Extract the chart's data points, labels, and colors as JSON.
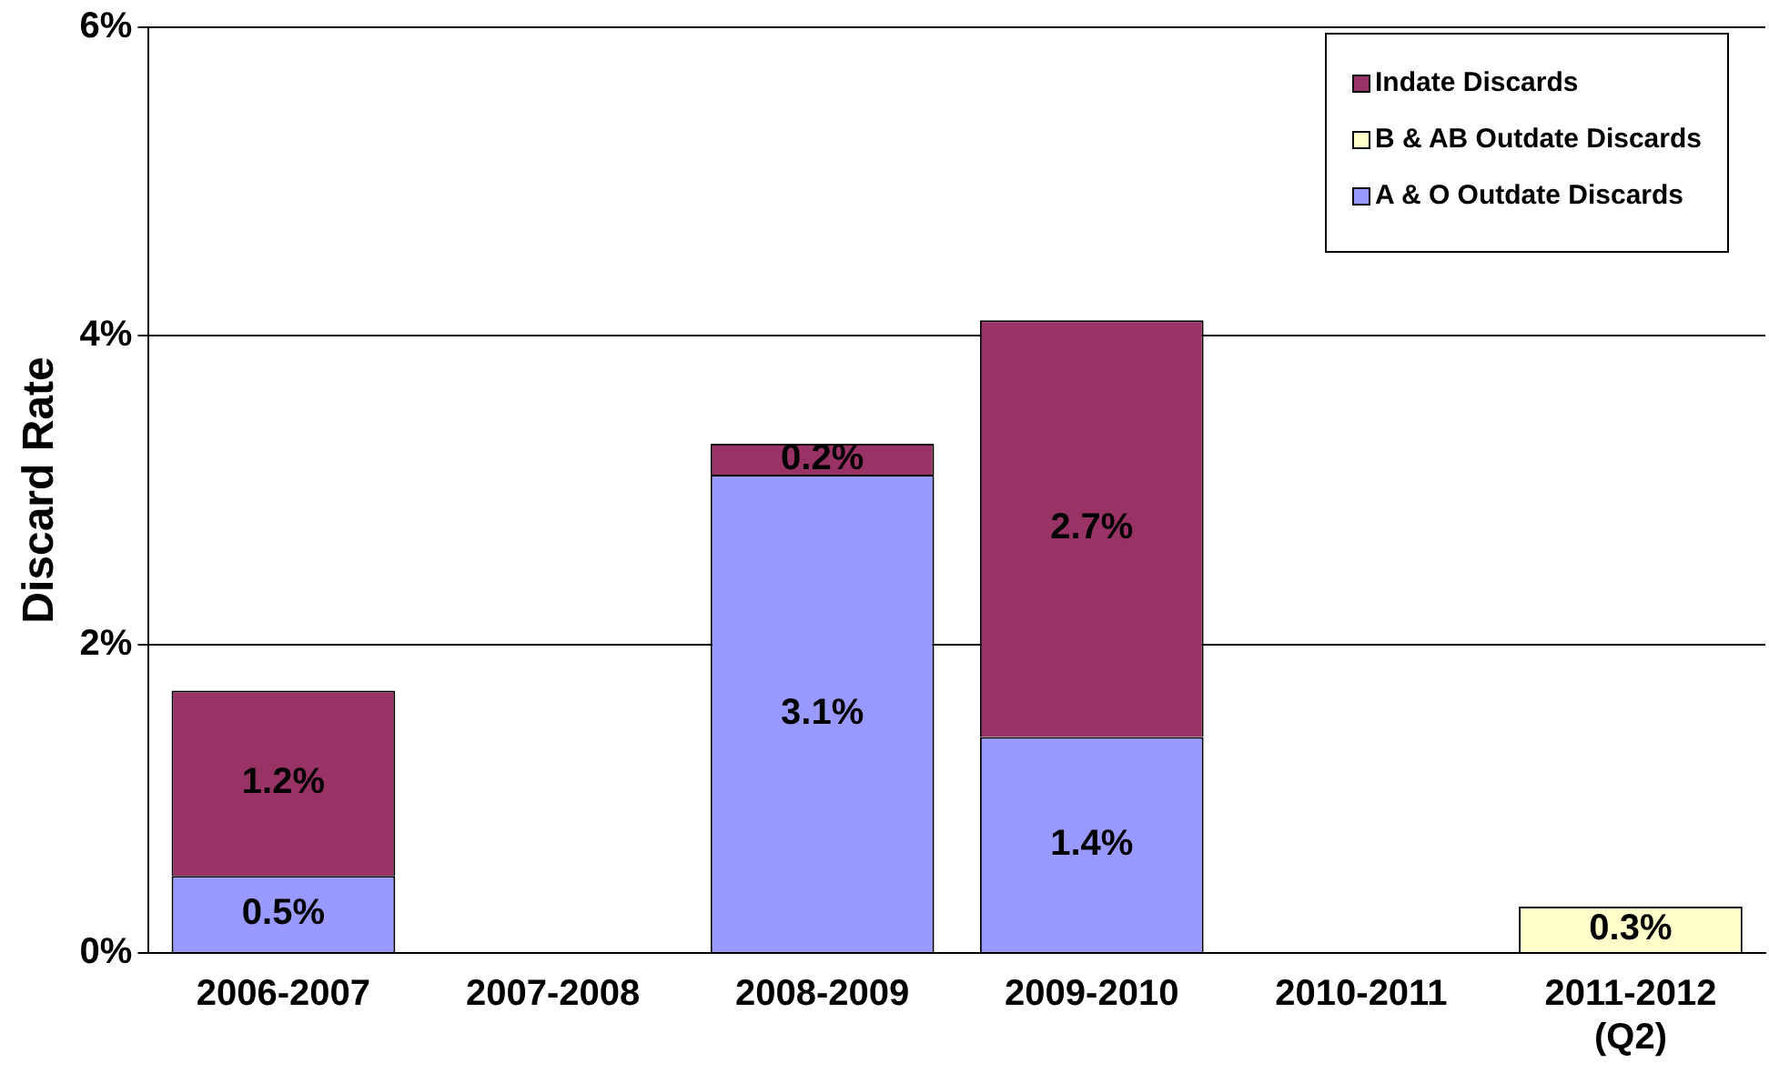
{
  "chart_data": {
    "type": "bar",
    "stacked": true,
    "ylabel": "Discard Rate",
    "categories": [
      "2006-2007",
      "2007-2008",
      "2008-2009",
      "2009-2010",
      "2010-2011",
      "2011-2012 (Q2)"
    ],
    "series": [
      {
        "name": "A & O Outdate Discards",
        "color": "#9999ff",
        "values": [
          0.5,
          null,
          3.1,
          1.4,
          null,
          null
        ],
        "value_labels": [
          "0.5%",
          null,
          "3.1%",
          "1.4%",
          null,
          null
        ]
      },
      {
        "name": "B & AB Outdate Discards",
        "color": "#ffffcc",
        "values": [
          null,
          null,
          null,
          null,
          null,
          0.3
        ],
        "value_labels": [
          null,
          null,
          null,
          null,
          null,
          "0.3%"
        ]
      },
      {
        "name": "Indate Discards",
        "color": "#993366",
        "values": [
          1.2,
          null,
          0.2,
          2.7,
          null,
          null
        ],
        "value_labels": [
          "1.2%",
          null,
          "0.2%",
          "2.7%",
          null,
          null
        ]
      }
    ],
    "ylim": [
      0,
      6
    ],
    "yticks": [
      {
        "value": 0,
        "label": "0%"
      },
      {
        "value": 2,
        "label": "2%"
      },
      {
        "value": 4,
        "label": "4%"
      },
      {
        "value": 6,
        "label": "6%"
      }
    ],
    "grid": "y",
    "legend": "top right"
  }
}
